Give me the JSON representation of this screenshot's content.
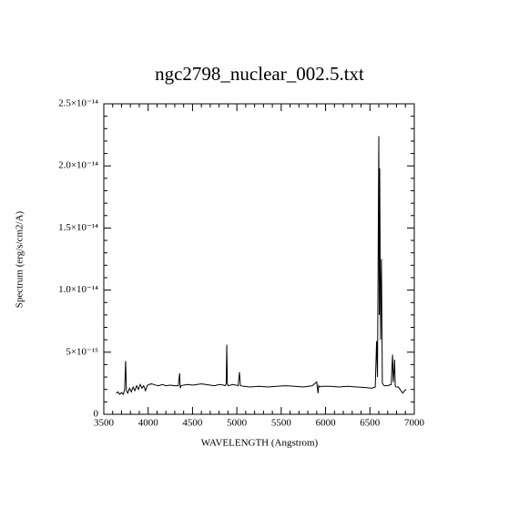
{
  "chart_data": {
    "type": "line",
    "title": "ngc2798_nuclear_002.5.txt",
    "x_label": "WAVELENGTH (Angstrom)",
    "y_label": "Spectrum (erg/s/cm2/A)",
    "xlim": [
      3500,
      7000
    ],
    "ylim": [
      0,
      2.5e-14
    ],
    "xticks": [
      3500,
      4000,
      4500,
      5000,
      5500,
      6000,
      6500,
      7000
    ],
    "yticks": [
      0,
      {
        "value": 5e-15,
        "label": "5×10⁻¹⁵"
      },
      {
        "value": 1e-14,
        "label": "1.0×10⁻¹⁴"
      },
      {
        "value": 1.5e-14,
        "label": "1.5×10⁻¹⁴"
      },
      {
        "value": 2e-14,
        "label": "2.0×10⁻¹⁴"
      },
      {
        "value": 2.5e-14,
        "label": "2.5×10⁻¹⁴"
      }
    ],
    "series": [
      {
        "color": "#000000",
        "x": [
          3640,
          3660,
          3680,
          3700,
          3720,
          3735,
          3746,
          3755,
          3770,
          3790,
          3810,
          3830,
          3850,
          3870,
          3890,
          3910,
          3930,
          3950,
          3970,
          3990,
          4010,
          4040,
          4080,
          4120,
          4160,
          4200,
          4250,
          4300,
          4340,
          4355,
          4362,
          4370,
          4400,
          4450,
          4500,
          4550,
          4600,
          4650,
          4700,
          4750,
          4800,
          4850,
          4870,
          4880,
          4886,
          4893,
          4905,
          4950,
          4990,
          5015,
          5029,
          5040,
          5080,
          5150,
          5250,
          5350,
          5450,
          5550,
          5650,
          5750,
          5850,
          5900,
          5915,
          5922,
          5930,
          5960,
          6050,
          6150,
          6250,
          6350,
          6450,
          6520,
          6560,
          6575,
          6585,
          6600,
          6605,
          6610,
          6620,
          6630,
          6640,
          6660,
          6700,
          6740,
          6755,
          6764,
          6772,
          6778,
          6785,
          6795,
          6820,
          6850,
          6870,
          6890,
          6910
        ],
        "values": [
          1.7e-15,
          1.8e-15,
          1.6e-15,
          1.75e-15,
          1.6e-15,
          2e-15,
          4.3e-15,
          1.9e-15,
          1.7e-15,
          2.1e-15,
          1.8e-15,
          2.2e-15,
          1.9e-15,
          2.3e-15,
          2e-15,
          2.4e-15,
          2.1e-15,
          2.3e-15,
          1.9e-15,
          2.3e-15,
          2.4e-15,
          2.45e-15,
          2.35e-15,
          2.3e-15,
          2.4e-15,
          2.3e-15,
          2.35e-15,
          2.3e-15,
          2.3e-15,
          3.3e-15,
          2.1e-15,
          2.3e-15,
          2.35e-15,
          2.4e-15,
          2.35e-15,
          2.4e-15,
          2.45e-15,
          2.4e-15,
          2.35e-15,
          2.3e-15,
          2.4e-15,
          2.35e-15,
          2.3e-15,
          2.5e-15,
          5.6e-15,
          2.4e-15,
          2.3e-15,
          2.4e-15,
          2.35e-15,
          2.3e-15,
          3.4e-15,
          2.3e-15,
          2.25e-15,
          2.2e-15,
          2.25e-15,
          2.2e-15,
          2.25e-15,
          2.3e-15,
          2.25e-15,
          2.2e-15,
          2.3e-15,
          2.6e-15,
          1.7e-15,
          2.3e-15,
          2.2e-15,
          2.25e-15,
          2.25e-15,
          2.2e-15,
          2.25e-15,
          2.2e-15,
          2.15e-15,
          2.1e-15,
          2.2e-15,
          5.9e-15,
          3e-15,
          2.24e-14,
          8e-15,
          1.98e-14,
          6e-15,
          1.25e-14,
          2.5e-15,
          2.3e-15,
          2.3e-15,
          2.4e-15,
          4.8e-15,
          2.6e-15,
          3.5e-15,
          4.4e-15,
          2.3e-15,
          2.2e-15,
          2.2e-15,
          1.9e-15,
          1.7e-15,
          1.9e-15,
          2e-15
        ]
      }
    ]
  }
}
